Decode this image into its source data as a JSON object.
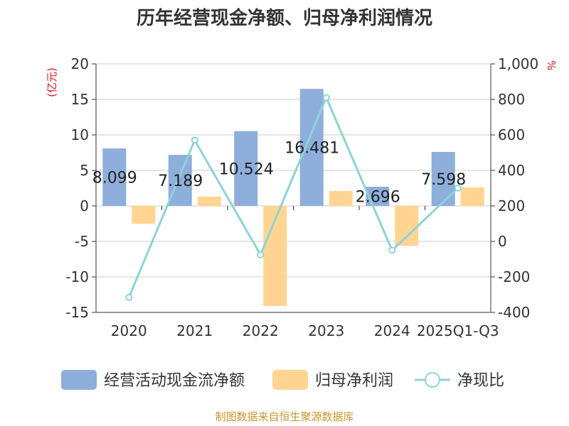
{
  "chart_data": {
    "type": "bar",
    "title": "历年经营现金净额、归母净利润情况",
    "categories": [
      "2020",
      "2021",
      "2022",
      "2023",
      "2024",
      "2025Q1-Q3"
    ],
    "y_left": {
      "unit": "(亿元)",
      "range": [
        -15,
        20
      ],
      "ticks": [
        20,
        15,
        10,
        5,
        0,
        -5,
        -10,
        -15
      ]
    },
    "y_right": {
      "unit": "%",
      "range": [
        -400,
        1000
      ],
      "ticks": [
        "1,000",
        "800",
        "600",
        "400",
        "200",
        "0",
        "-200",
        "-400"
      ]
    },
    "series": [
      {
        "name": "经营活动现金流净额",
        "type": "bar",
        "axis": "left",
        "color": "#8eaedc",
        "values": [
          8.099,
          7.189,
          10.524,
          16.481,
          2.696,
          7.598
        ],
        "labels": [
          "8.099",
          "7.189",
          "10.524",
          "16.481",
          "2.696",
          "7.598"
        ]
      },
      {
        "name": "归母净利润",
        "type": "bar",
        "axis": "left",
        "color": "#ffd591",
        "values": [
          -2.5,
          1.3,
          -14.1,
          2.1,
          -5.6,
          2.6
        ]
      },
      {
        "name": "净现比",
        "type": "line",
        "axis": "right",
        "color": "#8ed3d9",
        "values": [
          -315,
          570,
          -75,
          810,
          -50,
          300
        ]
      }
    ],
    "grid": true,
    "legend": "bottom"
  },
  "footer": {
    "source": "制图数据来自恒生聚源数据库"
  }
}
